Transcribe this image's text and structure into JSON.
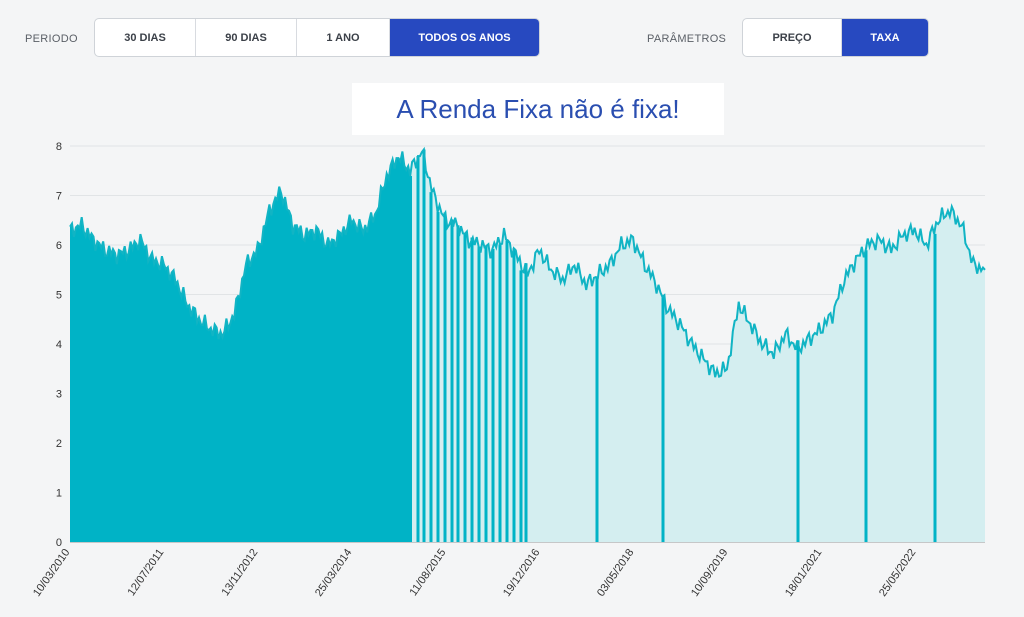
{
  "filters": {
    "period_label": "PERIODO",
    "period_options": [
      "30 DIAS",
      "90 DIAS",
      "1 ANO",
      "TODOS OS ANOS"
    ],
    "period_selected": "TODOS OS ANOS",
    "params_label": "PARÂMETROS",
    "params_options": [
      "PREÇO",
      "TAXA"
    ],
    "params_selected": "TAXA"
  },
  "chart_data": {
    "type": "area",
    "title": "A Renda Fixa não é fixa!",
    "xlabel": "",
    "ylabel": "",
    "ylim": [
      0,
      8
    ],
    "yticks": [
      0,
      1,
      2,
      3,
      4,
      5,
      6,
      7,
      8
    ],
    "xticks": [
      "10/03/2010",
      "12/07/2011",
      "13/11/2012",
      "25/03/2014",
      "11/08/2015",
      "19/12/2016",
      "03/05/2018",
      "10/09/2019",
      "18/01/2021",
      "25/05/2022"
    ],
    "grid": true,
    "colors": {
      "fill_dark": "#00b3c6",
      "fill_light": "#d4eef0",
      "line": "#11b4c4"
    },
    "series": [
      {
        "x": [
          "2010-03",
          "2010-05",
          "2010-08",
          "2010-11",
          "2011-02",
          "2011-05",
          "2011-07",
          "2011-09",
          "2011-11",
          "2012-01",
          "2012-03",
          "2012-06",
          "2012-09",
          "2012-11",
          "2013-01",
          "2013-03",
          "2013-05",
          "2013-07",
          "2013-09",
          "2013-11",
          "2014-01",
          "2014-03",
          "2014-05",
          "2014-07",
          "2014-09",
          "2014-11",
          "2015-01",
          "2015-03",
          "2015-05",
          "2015-07",
          "2015-09",
          "2015-11",
          "2016-01",
          "2016-03",
          "2016-05",
          "2016-07",
          "2016-09",
          "2016-11",
          "2017-01",
          "2017-03",
          "2017-05",
          "2017-07",
          "2017-09",
          "2017-11",
          "2018-01",
          "2018-03",
          "2018-05",
          "2018-07",
          "2018-09",
          "2018-11",
          "2019-01",
          "2019-03",
          "2019-05",
          "2019-07",
          "2019-09",
          "2019-11",
          "2020-01",
          "2020-03",
          "2020-05",
          "2020-07",
          "2020-09",
          "2020-11",
          "2021-01",
          "2021-03",
          "2021-05",
          "2021-07",
          "2021-09",
          "2021-11",
          "2022-01",
          "2022-03",
          "2022-05",
          "2022-07",
          "2022-09",
          "2022-11",
          "2023-01",
          "2023-03",
          "2023-05",
          "2023-07",
          "2023-09"
        ],
        "values": [
          6.3,
          6.4,
          6.1,
          5.9,
          5.8,
          5.9,
          6.1,
          5.7,
          5.6,
          5.3,
          4.8,
          4.5,
          4.3,
          4.2,
          4.6,
          5.6,
          5.9,
          6.7,
          7.1,
          6.4,
          6.2,
          6.3,
          6.0,
          6.2,
          6.5,
          6.3,
          6.6,
          7.4,
          7.8,
          7.5,
          7.9,
          7.0,
          6.5,
          6.4,
          6.1,
          6.0,
          5.9,
          6.2,
          5.8,
          5.4,
          5.9,
          5.5,
          5.3,
          5.6,
          5.2,
          5.4,
          5.6,
          6.0,
          6.1,
          5.6,
          5.2,
          4.7,
          4.4,
          4.0,
          3.7,
          3.4,
          3.5,
          4.8,
          4.4,
          4.0,
          3.8,
          4.2,
          3.9,
          4.1,
          4.3,
          4.6,
          5.3,
          5.7,
          6.0,
          6.1,
          5.9,
          6.2,
          6.3,
          6.0,
          6.5,
          6.7,
          6.4,
          5.6,
          5.5
        ]
      }
    ]
  }
}
